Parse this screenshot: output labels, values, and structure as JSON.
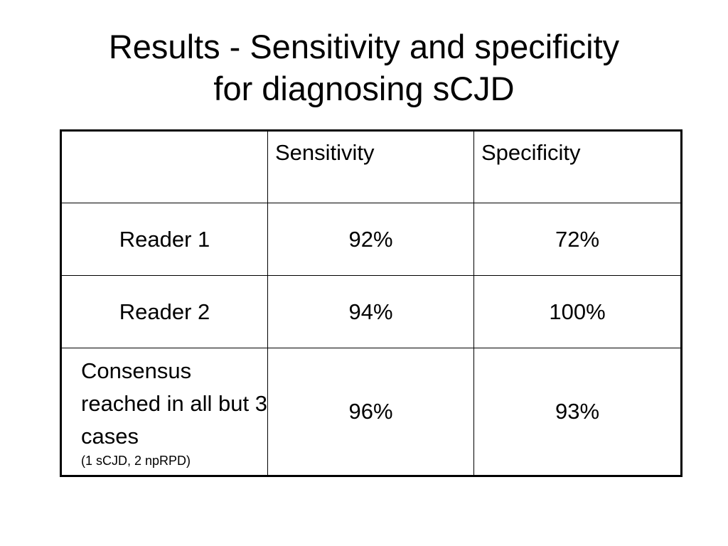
{
  "header": {
    "title_lines": [
      "Results - Sensitivity and specificity",
      "for diagnosing sCJD"
    ]
  },
  "table": {
    "columns": [
      "Sensitivity",
      "Specificity"
    ],
    "rows": [
      {
        "label": "Reader 1",
        "values": [
          "92%",
          "72%"
        ]
      },
      {
        "label": "Reader 2",
        "values": [
          "94%",
          "100%"
        ]
      },
      {
        "label": "Consensus reached in all but 3 cases",
        "note": "(1 sCJD, 2 npRPD)",
        "values": [
          "96%",
          "93%"
        ]
      }
    ]
  }
}
